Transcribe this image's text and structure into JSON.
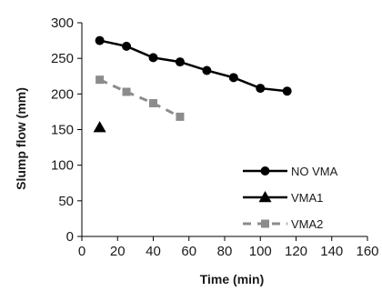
{
  "chart_data": {
    "type": "line",
    "title": "",
    "xlabel": "Time (min)",
    "ylabel": "Slump flow (mm)",
    "xlim": [
      0,
      160
    ],
    "ylim": [
      0,
      300
    ],
    "x_ticks": [
      0,
      20,
      40,
      60,
      80,
      100,
      120,
      140,
      160
    ],
    "y_ticks": [
      0,
      50,
      100,
      150,
      200,
      250,
      300
    ],
    "grid": false,
    "legend_position": "bottom-right",
    "series": [
      {
        "name": "NO VMA",
        "x": [
          10,
          25,
          40,
          55,
          70,
          85,
          100,
          115
        ],
        "y": [
          275,
          267,
          251,
          245,
          233,
          223,
          208,
          204
        ],
        "color": "#000000",
        "marker": "circle",
        "line": "solid"
      },
      {
        "name": "VMA1",
        "x": [
          10
        ],
        "y": [
          153
        ],
        "color": "#000000",
        "marker": "triangle",
        "line": "solid"
      },
      {
        "name": "VMA2",
        "x": [
          10,
          25,
          40,
          55
        ],
        "y": [
          220,
          203,
          187,
          168
        ],
        "color": "#8c8c8c",
        "marker": "square",
        "line": "dashed"
      }
    ]
  }
}
